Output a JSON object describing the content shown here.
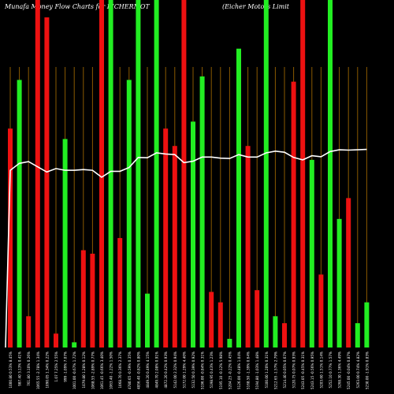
{
  "title": "Munafa Money Flow Charts for EICHERMOT",
  "subtitle": "(Eicher Motors Limit",
  "colors": {
    "background": "#000000",
    "up": "#22ee22",
    "down": "#ee1111",
    "line": "#ffffff",
    "grid": "#8a5a00",
    "text": "#ffffff"
  },
  "chart_data": {
    "type": "bar",
    "ylim": [
      0,
      100
    ],
    "grid": "vertical-lines",
    "series": [
      {
        "values": [
          63,
          77,
          9,
          100,
          95,
          4,
          60,
          1.5,
          28,
          27,
          100,
          100,
          31.5,
          77,
          100,
          15.5,
          100,
          63,
          58,
          100,
          65,
          78,
          16,
          13,
          2.5,
          86,
          58,
          16.5,
          100,
          9,
          7,
          76.5,
          100,
          54,
          21,
          100,
          37,
          43,
          7,
          13
        ]
      },
      {
        "type": "line",
        "values": [
          51,
          53,
          53.5,
          52,
          50.5,
          51.5,
          51,
          51,
          51.2,
          51,
          49,
          50.7,
          50.7,
          51.8,
          54.7,
          54.6,
          56,
          55.7,
          55.5,
          53.2,
          53.6,
          54.8,
          54.8,
          54.5,
          54.4,
          55.5,
          54.8,
          54.8,
          56,
          56.5,
          56.2,
          54.7,
          54,
          55.2,
          54.9,
          56.4,
          56.9,
          56.8,
          56.9,
          57
        ]
      }
    ],
    "bar_colors": [
      "down",
      "up",
      "down",
      "down",
      "down",
      "down",
      "up",
      "up",
      "down",
      "down",
      "down",
      "up",
      "down",
      "up",
      "up",
      "up",
      "up",
      "down",
      "down",
      "down",
      "up",
      "up",
      "down",
      "down",
      "up",
      "up",
      "down",
      "down",
      "up",
      "up",
      "down",
      "down",
      "down",
      "up",
      "down",
      "up",
      "up",
      "down",
      "up",
      "up"
    ],
    "tick_labels": [
      "1000.80 0.53% 8.45%",
      "987.40 3.13% 0.41%",
      "761.80 3.10% 0.26%",
      "1065.55 -2.78% 1.34%",
      "1090.05 1.34% 0.22%",
      "1.07 7.25% 2.55%",
      "999 -1.09% 7.07%",
      "1001.00 -0.67% 1.72%",
      "1079.80 1.28% 0.12%",
      "1068.55 -2.89% 0.77%",
      "1061.45 -0.66% 3.40%",
      "1063.40 -1.22% 1.50%",
      "1068.70 0.36% 2.37%",
      "4780.65 -0.59% 0.35%",
      "4856.40 -0.82% 0.80%",
      "4849.20 0.49% 4.15%",
      "4849.70 2.08% 0.91%",
      "4872.20 0.42% 0.93%",
      "5142.00 2.32% 0.94%",
      "5172.00 1.29% 4.40%",
      "5132.50 0.39% 0.92%",
      "5196.00 -0.84% 0.31%",
      "5198.95 0.43% 1.23%",
      "5195.10 -0.12% 5.98%",
      "5204.25 -0.22% 0.45%",
      "5126.00 -0.48% 1.04%",
      "5168.50 -1.39% 0.64%",
      "5194.80 -1.03% 1.48%",
      "5100.00 1.20% 0.31%",
      "5212.65 -1.57% 2.79%",
      "5214.40 0.05% 0.67%",
      "5120.75 0.07% 0.93%",
      "5243.05 -0.45% 0.31%",
      "5243.15 -0.56% 0.95%",
      "5203.60 1.51% 0.14%",
      "5252.10 0.77% 1.57%",
      "5268.30 1.36% 4.49%",
      "5245.00 -0.04% 0.87%",
      "5263.00 0.74% 4.82%",
      "5230.00 -1.91% 0.83%"
    ]
  }
}
